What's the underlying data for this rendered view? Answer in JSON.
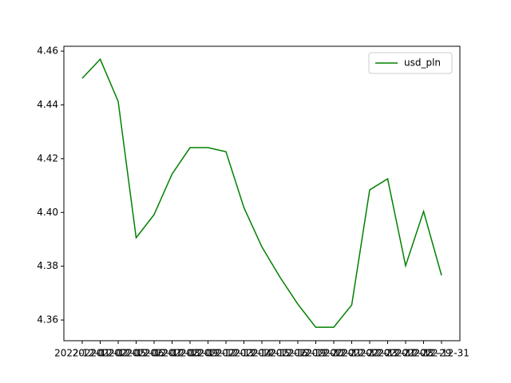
{
  "chart_data": {
    "type": "line",
    "categories": [
      "2022-12-01",
      "2022-12-02",
      "2022-12-05",
      "2022-12-06",
      "2022-12-07",
      "2022-12-08",
      "2022-12-09",
      "2022-12-12",
      "2022-12-13",
      "2022-12-14",
      "2022-12-15",
      "2022-12-16",
      "2022-12-19",
      "2022-12-20",
      "2022-12-21",
      "2022-12-22",
      "2022-12-23",
      "2022-12-27",
      "2022-12-28",
      "2022-12-29",
      "2022-12-31"
    ],
    "series": [
      {
        "name": "usd_pln",
        "color": "#008000",
        "values": [
          4.4499,
          4.457,
          4.4413,
          4.3906,
          4.3992,
          4.4143,
          4.4241,
          4.4241,
          4.4226,
          4.4018,
          4.3872,
          4.376,
          4.3659,
          4.3573,
          4.3573,
          4.3656,
          4.4084,
          4.4125,
          4.3802,
          4.4004,
          4.3766
        ]
      }
    ],
    "ylim": [
      4.3523,
      4.4618
    ],
    "yticks": [
      {
        "value": 4.36,
        "label": "4.36"
      },
      {
        "value": 4.38,
        "label": "4.38"
      },
      {
        "value": 4.4,
        "label": "4.40"
      },
      {
        "value": 4.42,
        "label": "4.42"
      },
      {
        "value": 4.44,
        "label": "4.44"
      },
      {
        "value": 4.46,
        "label": "4.46"
      }
    ],
    "grid": false,
    "legend": "upper right"
  }
}
